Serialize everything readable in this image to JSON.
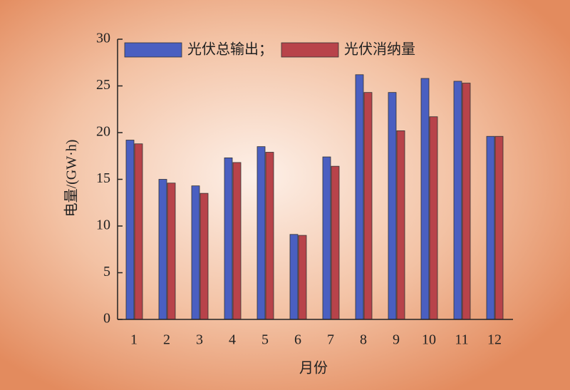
{
  "chart_data": {
    "type": "bar",
    "x_label": "月份",
    "y_label": "电量/(GW·h)",
    "categories": [
      "1",
      "2",
      "3",
      "4",
      "5",
      "6",
      "7",
      "8",
      "9",
      "10",
      "11",
      "12"
    ],
    "series": [
      {
        "name": "光伏总输出；",
        "color": "#4a5fc1",
        "values": [
          19.2,
          15.0,
          14.3,
          17.3,
          18.5,
          9.1,
          17.4,
          26.2,
          24.3,
          25.8,
          25.5,
          19.6
        ]
      },
      {
        "name": "光伏消纳量",
        "color": "#b8434a",
        "values": [
          18.8,
          14.6,
          13.5,
          16.8,
          17.9,
          9.0,
          16.4,
          24.3,
          20.2,
          21.7,
          25.3,
          19.6
        ]
      }
    ],
    "ylim": [
      0,
      30
    ],
    "yticks": [
      0,
      5,
      10,
      15,
      20,
      25,
      30
    ],
    "grid": false,
    "legend": "upper left"
  }
}
